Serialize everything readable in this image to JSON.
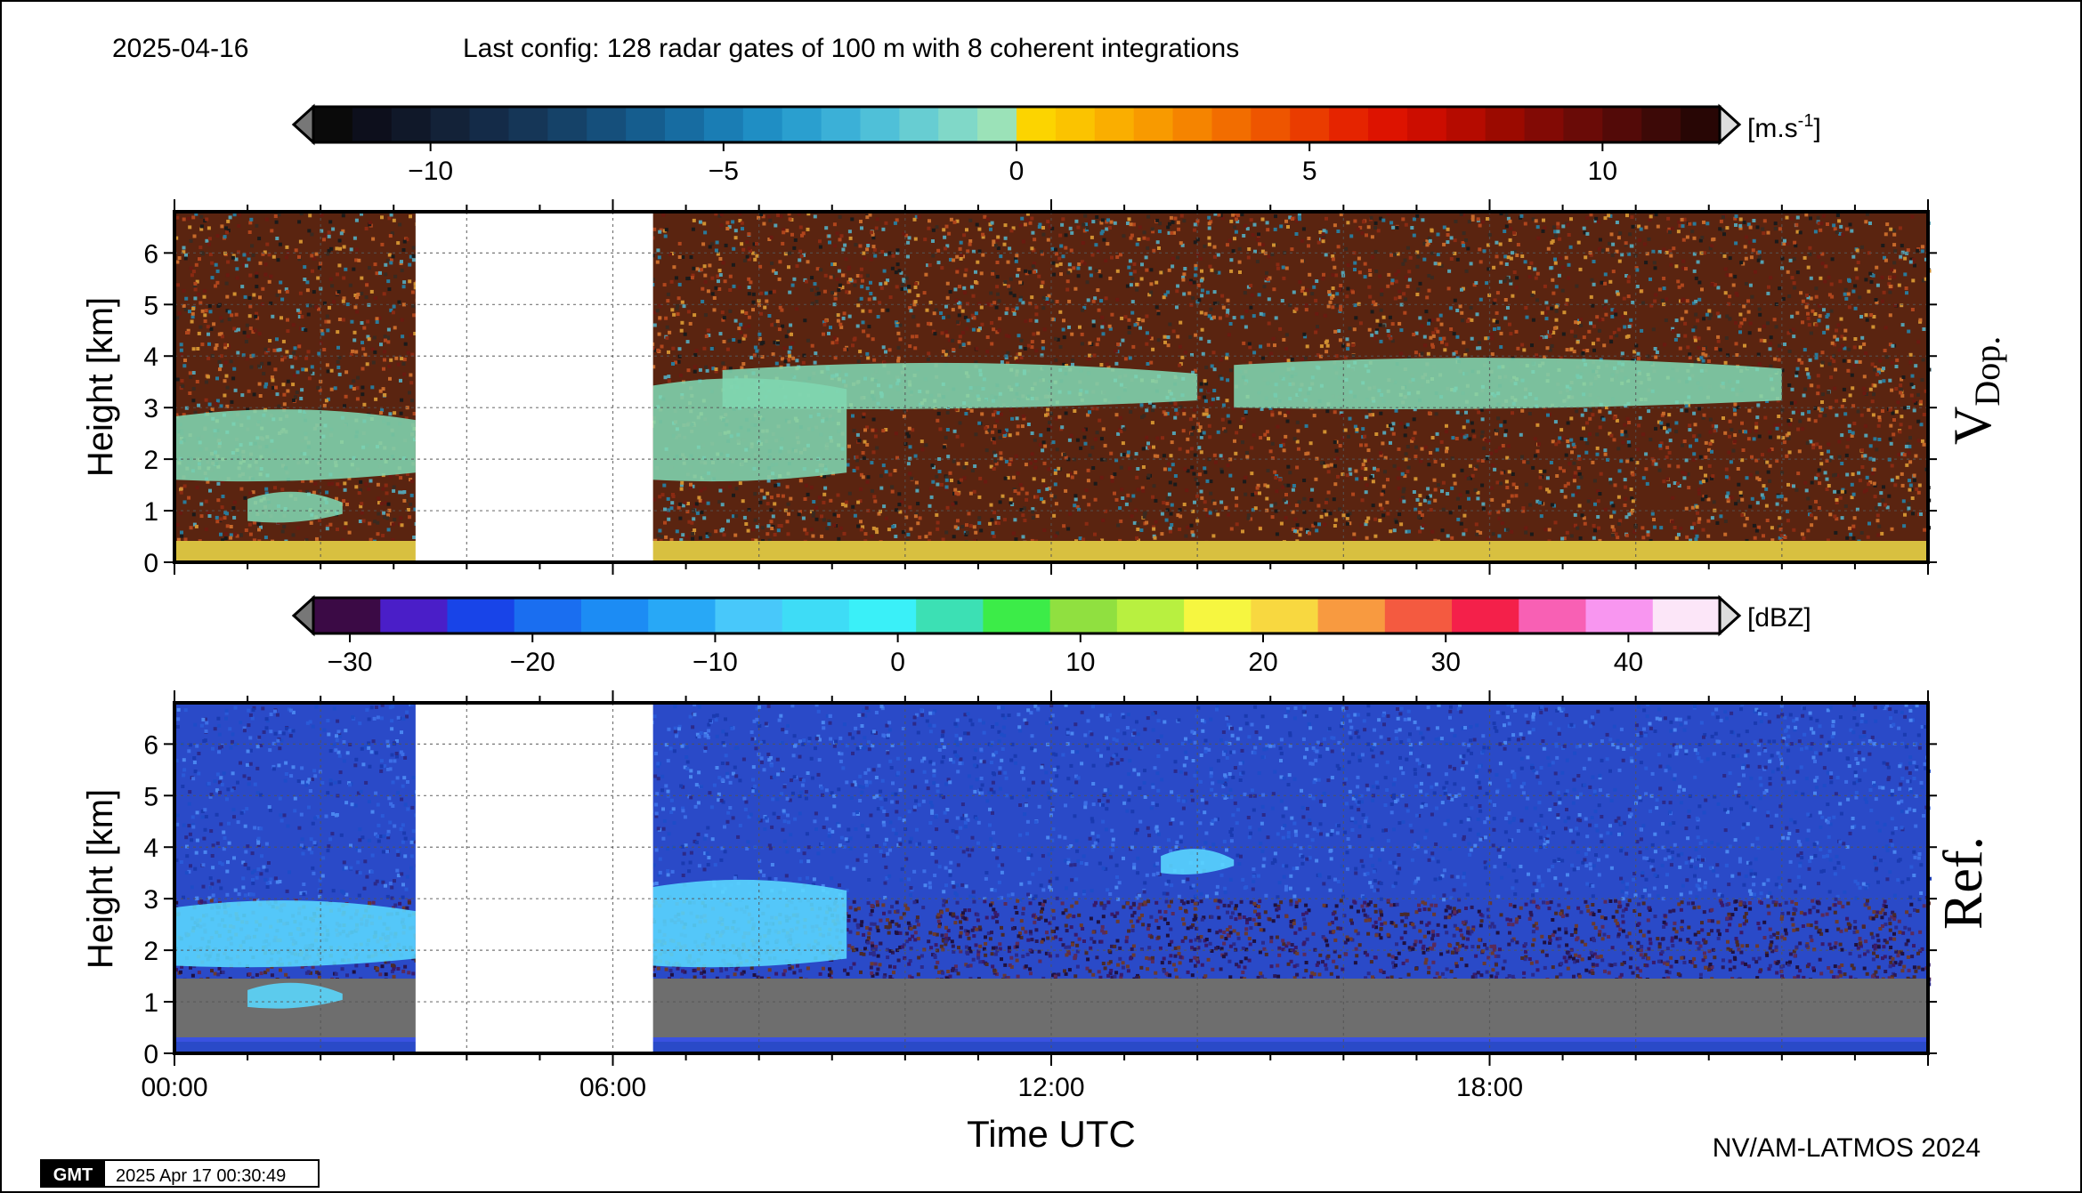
{
  "header": {
    "date": "2025-04-16",
    "config": "Last config: 128 radar gates of 100 m with 8 coherent integrations"
  },
  "footer": {
    "gmt_logo": "GMT",
    "timestamp": "2025 Apr 17 00:30:49",
    "credit": "NV/AM-LATMOS 2024"
  },
  "colors": {
    "noise_doppler": [
      "#8a2a12",
      "#b0451c",
      "#3a2a20",
      "#c76a2a",
      "#2a7a9a",
      "#6a1a10",
      "#d09030",
      "#1a1a1a",
      "#55a0b0"
    ],
    "noise_reflectivity_upper": [
      "#2a5ad8",
      "#1e4cc8",
      "#3c6ee6",
      "#1a3ab0",
      "#4a86f0",
      "#2c2a8a"
    ],
    "noise_reflectivity_lower": [
      "#2a1858",
      "#3a1a6a",
      "#4a2a2a",
      "#1e1040",
      "#5a2a5a",
      "#2c2a8a",
      "#6a3a30"
    ],
    "cloud_doppler": "#7fd6b0",
    "cloud_reflectivity": "#5ad8ff",
    "ground_doppler": "#d8c040",
    "ground_reflectivity": "#6e6e6e",
    "reflectivity_surface_line": "#3a52e0"
  },
  "chart_data": [
    {
      "type": "heatmap",
      "panel_label": "V",
      "panel_label_sub": "Dop.",
      "ylabel": "Height [km]",
      "ylim": [
        0,
        6.8
      ],
      "yticks": [
        "0",
        "1",
        "2",
        "3",
        "4",
        "5",
        "6"
      ],
      "xlim_hours": [
        0,
        24
      ],
      "missing_data_hours": [
        3.3,
        6.55
      ],
      "colorbar": {
        "unit_prefix": "[m.s",
        "unit_exp": "-1",
        "unit_suffix": "]",
        "range": [
          -12,
          12
        ],
        "tick_values": [
          -10,
          -5,
          0,
          5,
          10
        ],
        "tick_labels": [
          "−10",
          "−5",
          "0",
          "5",
          "10"
        ],
        "colors": [
          "#0a0a0a",
          "#0d0f1c",
          "#101829",
          "#132238",
          "#142b48",
          "#153657",
          "#154268",
          "#154f7b",
          "#155d8e",
          "#176ca1",
          "#1a7db4",
          "#1f8ec4",
          "#2a9fcf",
          "#3bb0d7",
          "#4fc0d8",
          "#67cdd2",
          "#80d8c8",
          "#9be2b8",
          "#fcd400",
          "#fbc300",
          "#faae00",
          "#f89a00",
          "#f58400",
          "#f26d00",
          "#ee5500",
          "#ea3c00",
          "#e52400",
          "#dd1300",
          "#cc0d00",
          "#b50b00",
          "#9b0a00",
          "#820a05",
          "#6a0b07",
          "#530a08",
          "#3d0907",
          "#280605"
        ]
      },
      "clouds": [
        {
          "start_hour": 0.0,
          "end_hour": 3.3,
          "base_km": 1.6,
          "top_km": 3.0
        },
        {
          "start_hour": 1.0,
          "end_hour": 2.3,
          "base_km": 0.8,
          "top_km": 1.4
        },
        {
          "start_hour": 6.55,
          "end_hour": 9.2,
          "base_km": 1.6,
          "top_km": 3.6
        },
        {
          "start_hour": 7.5,
          "end_hour": 14.0,
          "base_km": 3.0,
          "top_km": 3.9
        },
        {
          "start_hour": 14.5,
          "end_hour": 22.0,
          "base_km": 3.0,
          "top_km": 4.0
        }
      ]
    },
    {
      "type": "heatmap",
      "panel_label": "Ref.",
      "ylabel": "Height [km]",
      "xlabel": "Time UTC",
      "ylim": [
        0,
        6.8
      ],
      "yticks": [
        "0",
        "1",
        "2",
        "3",
        "4",
        "5",
        "6"
      ],
      "xlim_hours": [
        0,
        24
      ],
      "xticks": [
        "00:00",
        "06:00",
        "12:00",
        "18:00"
      ],
      "xtick_hours": [
        0,
        6,
        12,
        18
      ],
      "missing_data_hours": [
        3.3,
        6.55
      ],
      "colorbar": {
        "unit": "[dBZ]",
        "range": [
          -32,
          45
        ],
        "tick_values": [
          -30,
          -20,
          -10,
          0,
          10,
          20,
          30,
          40
        ],
        "tick_labels": [
          "−30",
          "−20",
          "−10",
          "0",
          "10",
          "20",
          "30",
          "40"
        ],
        "colors": [
          "#3b0a45",
          "#4a1ec8",
          "#1844e8",
          "#1a6ef0",
          "#1c8cf4",
          "#28a8f6",
          "#48c8fa",
          "#3edcf6",
          "#3af0f8",
          "#3ce0b4",
          "#3cec48",
          "#90e040",
          "#b8f040",
          "#f6f640",
          "#f8d840",
          "#f89a40",
          "#f45a40",
          "#f4204a",
          "#f860b4",
          "#f896f0",
          "#fce6f8"
        ]
      },
      "clouds": [
        {
          "start_hour": 0.0,
          "end_hour": 3.3,
          "base_km": 1.7,
          "top_km": 3.0
        },
        {
          "start_hour": 1.0,
          "end_hour": 2.3,
          "base_km": 0.9,
          "top_km": 1.4
        },
        {
          "start_hour": 6.55,
          "end_hour": 9.2,
          "base_km": 1.7,
          "top_km": 3.4
        },
        {
          "start_hour": 13.5,
          "end_hour": 14.5,
          "base_km": 3.5,
          "top_km": 4.0
        }
      ]
    }
  ]
}
